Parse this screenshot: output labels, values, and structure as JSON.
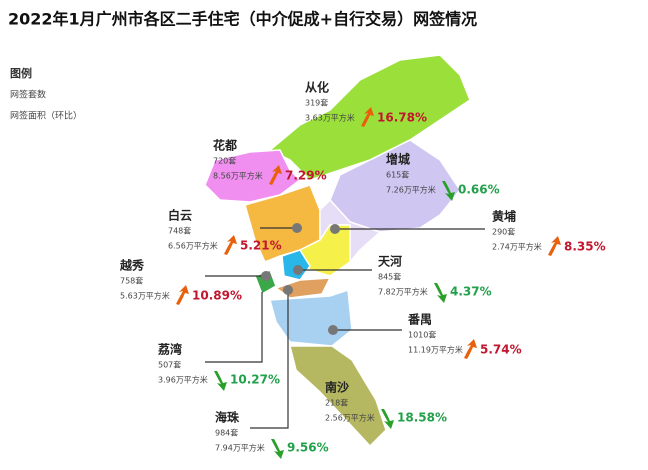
{
  "title": "2022年1月广州市各区二手住宅（中介促成+自行交易）网签情况",
  "legend": {
    "title": "图例",
    "items": [
      "网签套数",
      "网签面积（环比）"
    ]
  },
  "districts": [
    {
      "name": "从化",
      "units": "319套",
      "area": "3.63万平方米",
      "change": "16.78%",
      "trend": "up"
    },
    {
      "name": "花都",
      "units": "720套",
      "area": "8.56万平方米",
      "change": "7.29%",
      "trend": "up"
    },
    {
      "name": "增城",
      "units": "615套",
      "area": "7.26万平方米",
      "change": "0.66%",
      "trend": "down"
    },
    {
      "name": "白云",
      "units": "748套",
      "area": "6.56万平方米",
      "change": "5.21%",
      "trend": "up"
    },
    {
      "name": "黄埔",
      "units": "290套",
      "area": "2.74万平方米",
      "change": "8.35%",
      "trend": "up"
    },
    {
      "name": "越秀",
      "units": "758套",
      "area": "5.63万平方米",
      "change": "10.89%",
      "trend": "up"
    },
    {
      "name": "天河",
      "units": "845套",
      "area": "7.82万平方米",
      "change": "4.37%",
      "trend": "down"
    },
    {
      "name": "番禺",
      "units": "1010套",
      "area": "11.19万平方米",
      "change": "5.74%",
      "trend": "up"
    },
    {
      "name": "荔湾",
      "units": "507套",
      "area": "3.96万平方米",
      "change": "10.27%",
      "trend": "down"
    },
    {
      "name": "南沙",
      "units": "218套",
      "area": "2.56万平方米",
      "change": "18.58%",
      "trend": "down"
    },
    {
      "name": "海珠",
      "units": "984套",
      "area": "7.94万平方米",
      "change": "9.56%",
      "trend": "down"
    }
  ]
}
